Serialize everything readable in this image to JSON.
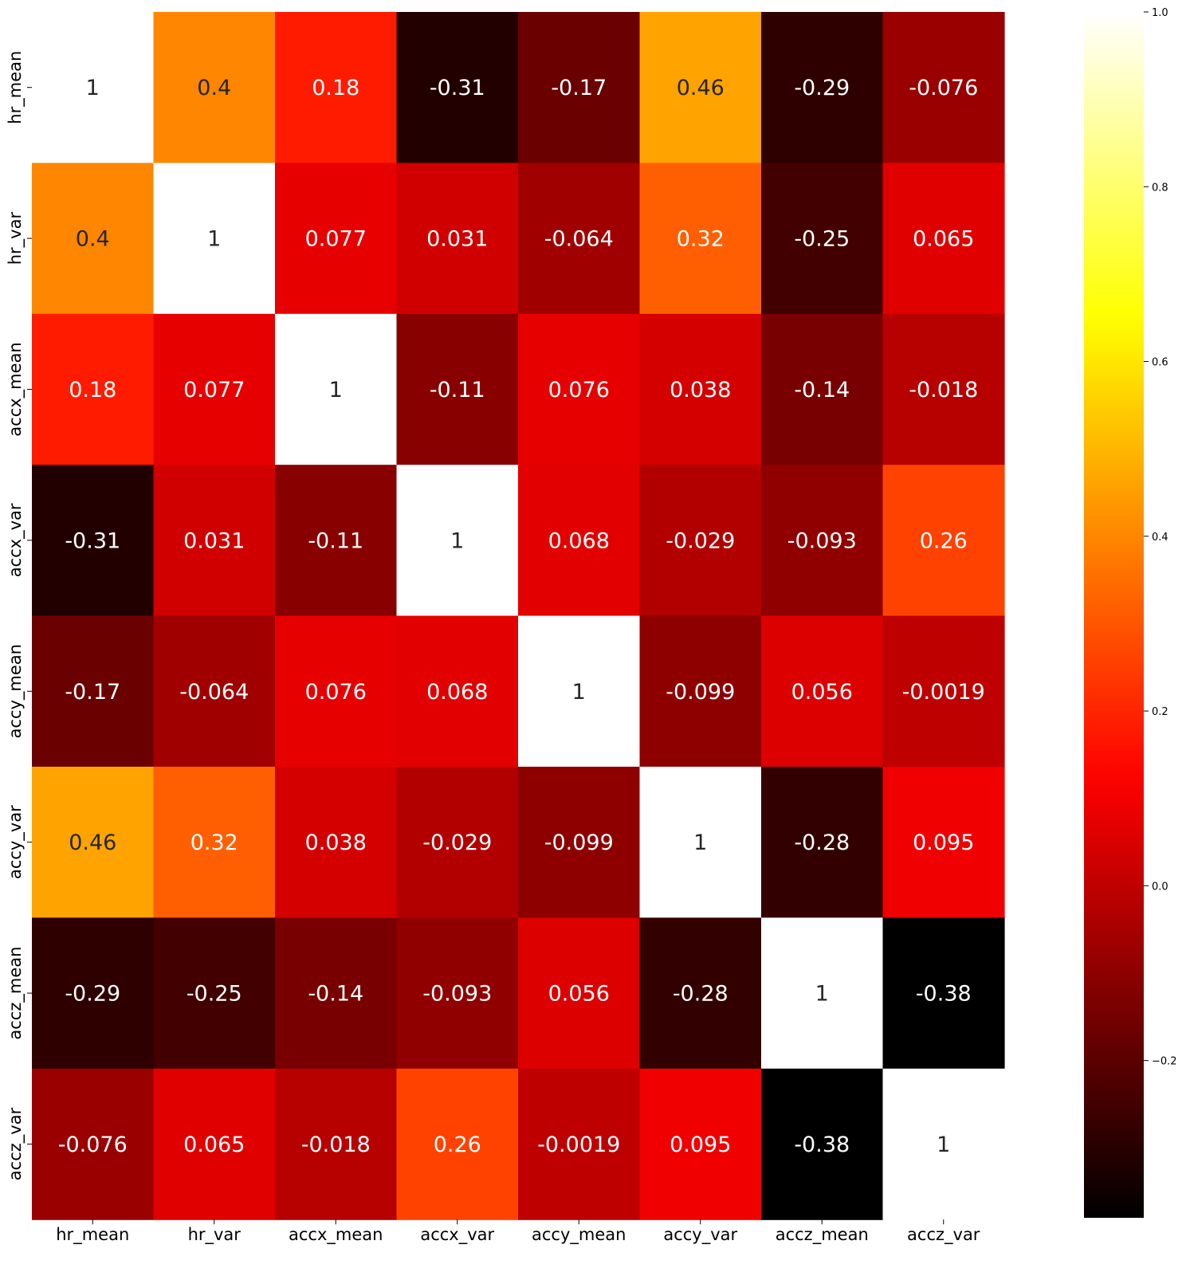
{
  "chart_data": {
    "type": "heatmap",
    "colormap": "hot",
    "variables": [
      "hr_mean",
      "hr_var",
      "accx_mean",
      "accx_var",
      "accy_mean",
      "accy_var",
      "accz_mean",
      "accz_var"
    ],
    "matrix": [
      [
        1,
        0.4,
        0.18,
        -0.31,
        -0.17,
        0.46,
        -0.29,
        -0.076
      ],
      [
        0.4,
        1,
        0.077,
        0.031,
        -0.064,
        0.32,
        -0.25,
        0.065
      ],
      [
        0.18,
        0.077,
        1,
        -0.11,
        0.076,
        0.038,
        -0.14,
        -0.018
      ],
      [
        -0.31,
        0.031,
        -0.11,
        1,
        0.068,
        -0.029,
        -0.093,
        0.26
      ],
      [
        -0.17,
        -0.064,
        0.076,
        0.068,
        1,
        -0.099,
        0.056,
        -0.0019
      ],
      [
        0.46,
        0.32,
        0.038,
        -0.029,
        -0.099,
        1,
        -0.28,
        0.095
      ],
      [
        -0.29,
        -0.25,
        -0.14,
        -0.093,
        0.056,
        -0.28,
        1,
        -0.38
      ],
      [
        -0.076,
        0.065,
        -0.018,
        0.26,
        -0.0019,
        0.095,
        -0.38,
        1
      ]
    ],
    "labels": [
      [
        "1",
        "0.4",
        "0.18",
        "-0.31",
        "-0.17",
        "0.46",
        "-0.29",
        "-0.076"
      ],
      [
        "0.4",
        "1",
        "0.077",
        "0.031",
        "-0.064",
        "0.32",
        "-0.25",
        "0.065"
      ],
      [
        "0.18",
        "0.077",
        "1",
        "-0.11",
        "0.076",
        "0.038",
        "-0.14",
        "-0.018"
      ],
      [
        "-0.31",
        "0.031",
        "-0.11",
        "1",
        "0.068",
        "-0.029",
        "-0.093",
        "0.26"
      ],
      [
        "-0.17",
        "-0.064",
        "0.076",
        "0.068",
        "1",
        "-0.099",
        "0.056",
        "-0.0019"
      ],
      [
        "0.46",
        "0.32",
        "0.038",
        "-0.029",
        "-0.099",
        "1",
        "-0.28",
        "0.095"
      ],
      [
        "-0.29",
        "-0.25",
        "-0.14",
        "-0.093",
        "0.056",
        "-0.28",
        "1",
        "-0.38"
      ],
      [
        "-0.076",
        "0.065",
        "-0.018",
        "0.26",
        "-0.0019",
        "0.095",
        "-0.38",
        "1"
      ]
    ],
    "colorbar": {
      "range": [
        -0.38,
        1.0
      ],
      "ticks": [
        1.0,
        0.8,
        0.6,
        0.4,
        0.2,
        0.0,
        -0.2
      ],
      "tick_labels": [
        "1.0",
        "0.8",
        "0.6",
        "0.4",
        "0.2",
        "0.0",
        "−0.2"
      ]
    },
    "title": "",
    "xlabel": "",
    "ylabel": "",
    "legend": "colorbar-right",
    "grid": false
  }
}
